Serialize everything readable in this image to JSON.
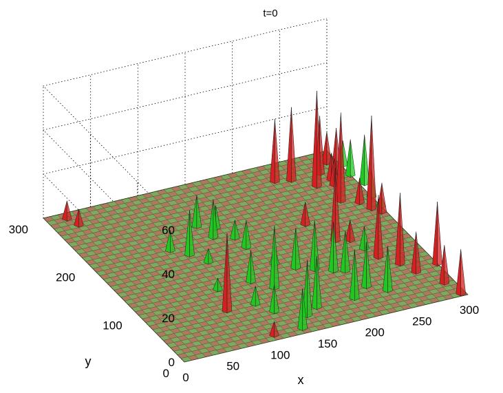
{
  "chart_data": {
    "type": "surface",
    "title": "t=0",
    "xlabel": "x",
    "ylabel": "y",
    "zlabel": "",
    "xlim": [
      0,
      300
    ],
    "ylim": [
      0,
      300
    ],
    "zlim": [
      0,
      60
    ],
    "xticks": [
      "0",
      "50",
      "100",
      "150",
      "200",
      "250",
      "300"
    ],
    "yticks": [
      "0",
      "100",
      "200",
      "300"
    ],
    "zticks": [
      "0",
      "20",
      "40",
      "60"
    ],
    "grid": true,
    "colors": {
      "red": "#d42020",
      "green": "#1ec81e",
      "surface_a": "#7fa860",
      "surface_b": "#b07860"
    },
    "series": [
      {
        "color": "red",
        "points": [
          {
            "x": 20,
            "y": 290,
            "z": 8
          },
          {
            "x": 25,
            "y": 275,
            "z": 7
          },
          {
            "x": 230,
            "y": 270,
            "z": 28
          },
          {
            "x": 245,
            "y": 265,
            "z": 33
          },
          {
            "x": 262,
            "y": 245,
            "z": 43
          },
          {
            "x": 275,
            "y": 265,
            "z": 26
          },
          {
            "x": 278,
            "y": 240,
            "z": 12
          },
          {
            "x": 290,
            "y": 280,
            "z": 14
          },
          {
            "x": 280,
            "y": 250,
            "z": 12
          },
          {
            "x": 290,
            "y": 260,
            "z": 20
          },
          {
            "x": 270,
            "y": 210,
            "z": 40
          },
          {
            "x": 285,
            "y": 200,
            "z": 11
          },
          {
            "x": 290,
            "y": 185,
            "z": 42
          },
          {
            "x": 296,
            "y": 175,
            "z": 13
          },
          {
            "x": 220,
            "y": 185,
            "z": 10
          },
          {
            "x": 232,
            "y": 145,
            "z": 33
          },
          {
            "x": 245,
            "y": 140,
            "z": 9
          },
          {
            "x": 255,
            "y": 100,
            "z": 28
          },
          {
            "x": 268,
            "y": 80,
            "z": 32
          },
          {
            "x": 275,
            "y": 60,
            "z": 18
          },
          {
            "x": 290,
            "y": 30,
            "z": 17
          },
          {
            "x": 80,
            "y": 70,
            "z": 35
          },
          {
            "x": 100,
            "y": 10,
            "z": 6
          },
          {
            "x": 300,
            "y": 65,
            "z": 28
          },
          {
            "x": 295,
            "y": 5,
            "z": 20
          }
        ]
      },
      {
        "color": "green",
        "points": [
          {
            "x": 125,
            "y": 225,
            "z": 14
          },
          {
            "x": 130,
            "y": 200,
            "z": 17
          },
          {
            "x": 140,
            "y": 215,
            "z": 10
          },
          {
            "x": 148,
            "y": 190,
            "z": 8
          },
          {
            "x": 82,
            "y": 195,
            "z": 9
          },
          {
            "x": 95,
            "y": 180,
            "z": 20
          },
          {
            "x": 105,
            "y": 160,
            "z": 6
          },
          {
            "x": 302,
            "y": 270,
            "z": 11
          },
          {
            "x": 300,
            "y": 250,
            "z": 16
          },
          {
            "x": 305,
            "y": 230,
            "z": 22
          },
          {
            "x": 300,
            "y": 205,
            "z": 12
          },
          {
            "x": 300,
            "y": 185,
            "z": 5
          },
          {
            "x": 125,
            "y": 110,
            "z": 14
          },
          {
            "x": 140,
            "y": 90,
            "z": 28
          },
          {
            "x": 110,
            "y": 70,
            "z": 8
          },
          {
            "x": 120,
            "y": 50,
            "z": 12
          },
          {
            "x": 160,
            "y": 130,
            "z": 8
          },
          {
            "x": 175,
            "y": 115,
            "z": 18
          },
          {
            "x": 190,
            "y": 105,
            "z": 22
          },
          {
            "x": 205,
            "y": 95,
            "z": 22
          },
          {
            "x": 215,
            "y": 90,
            "z": 18
          },
          {
            "x": 160,
            "y": 40,
            "z": 23
          },
          {
            "x": 145,
            "y": 30,
            "z": 25
          },
          {
            "x": 200,
            "y": 40,
            "z": 22
          },
          {
            "x": 220,
            "y": 55,
            "z": 20
          },
          {
            "x": 235,
            "y": 40,
            "z": 20
          },
          {
            "x": 130,
            "y": 10,
            "z": 18
          },
          {
            "x": 90,
            "y": 110,
            "z": 5
          },
          {
            "x": 250,
            "y": 120,
            "z": 10
          },
          {
            "x": 150,
            "y": 170,
            "z": 12
          }
        ]
      }
    ]
  }
}
